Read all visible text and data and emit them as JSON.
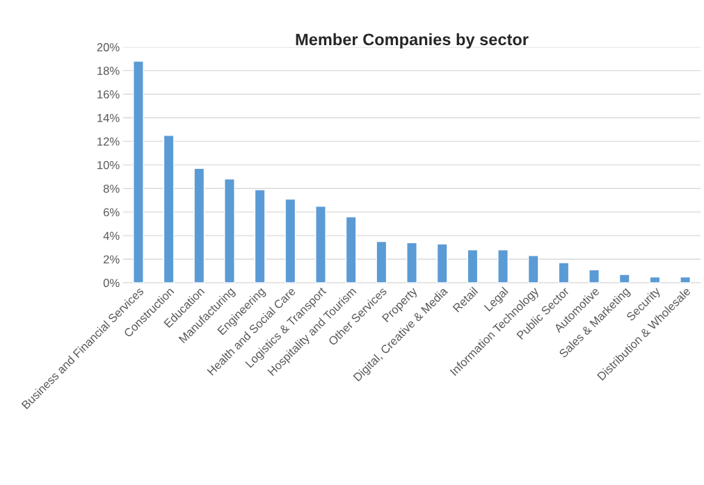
{
  "chart_data": {
    "type": "bar",
    "title": "Member Companies by sector",
    "categories": [
      "Business and Financial Services",
      "Construction",
      "Education",
      "Manufacturing",
      "Engineering",
      "Health and Social Care",
      "Logistics & Transport",
      "Hospitality and Tourism",
      "Other Services",
      "Property",
      "Digital, Creative & Media",
      "Retail",
      "Legal",
      "Information Technology",
      "Public Sector",
      "Automotive",
      "Sales & Marketing",
      "Security",
      "Distribution & Wholesale"
    ],
    "values": [
      18.8,
      12.5,
      9.7,
      8.8,
      7.9,
      7.1,
      6.5,
      5.6,
      3.5,
      3.4,
      3.3,
      2.8,
      2.8,
      2.3,
      1.7,
      1.1,
      0.7,
      0.5,
      0.5
    ],
    "color": "#5b9bd5",
    "ylim": [
      0,
      20
    ],
    "yticks": [
      {
        "value": 0,
        "label": "0%"
      },
      {
        "value": 2,
        "label": "2%"
      },
      {
        "value": 4,
        "label": "4%"
      },
      {
        "value": 6,
        "label": "6%"
      },
      {
        "value": 8,
        "label": "8%"
      },
      {
        "value": 10,
        "label": "10%"
      },
      {
        "value": 12,
        "label": "12%"
      },
      {
        "value": 14,
        "label": "14%"
      },
      {
        "value": 16,
        "label": "16%"
      },
      {
        "value": 18,
        "label": "18%"
      },
      {
        "value": 20,
        "label": "20%"
      }
    ],
    "grid": "y"
  }
}
